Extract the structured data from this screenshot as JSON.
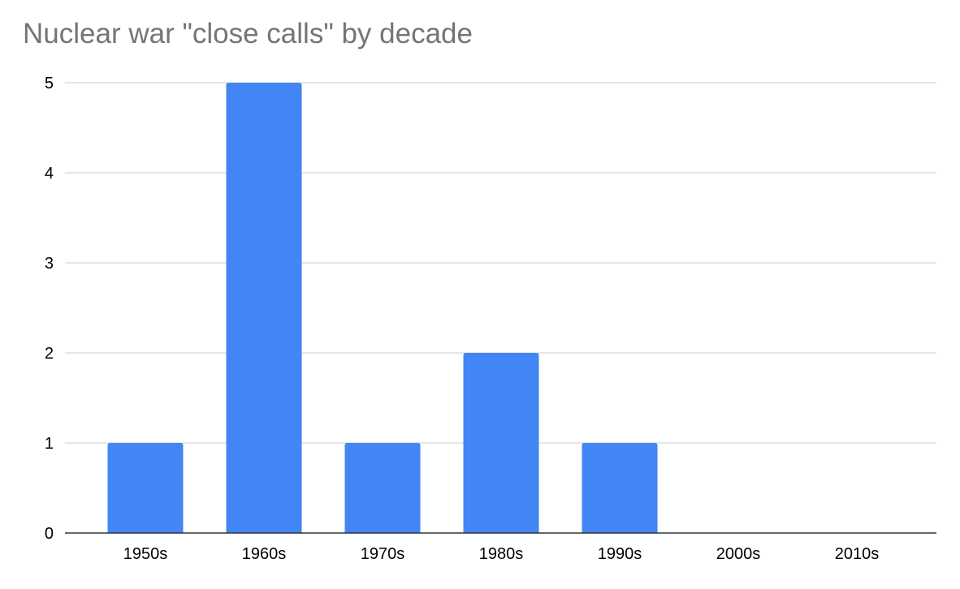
{
  "chart_data": {
    "type": "bar",
    "title": "Nuclear war \"close calls\" by decade",
    "categories": [
      "1950s",
      "1960s",
      "1970s",
      "1980s",
      "1990s",
      "2000s",
      "2010s"
    ],
    "values": [
      1,
      5,
      1,
      2,
      1,
      0,
      0
    ],
    "xlabel": "",
    "ylabel": "",
    "ylim": [
      0,
      5
    ],
    "yticks": [
      "0",
      "1",
      "2",
      "3",
      "4",
      "5"
    ],
    "grid": true,
    "legend": "none",
    "colors": {
      "bar": "#4285f4",
      "grid": "#cccccc",
      "axis": "#333333",
      "title": "#757575"
    }
  }
}
